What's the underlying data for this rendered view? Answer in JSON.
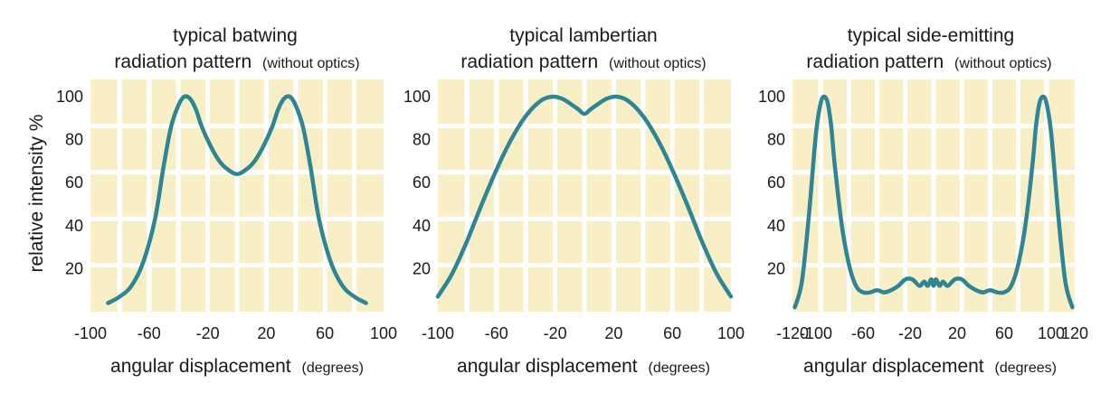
{
  "colors": {
    "plot_background": "#f8efc6",
    "grid": "#ffffff",
    "curve": "#2e8596",
    "text": "#1a1a1a"
  },
  "y_label": "relative intensity %",
  "chart_data": [
    {
      "type": "line",
      "title_line1": "typical batwing",
      "title_line2_main": "radiation pattern",
      "title_line2_note": "(without optics)",
      "xlabel_main": "angular displacement",
      "xlabel_unit": "(degrees)",
      "xlim": [
        -100,
        100
      ],
      "ylim": [
        0,
        108
      ],
      "xticks": [
        -100,
        -60,
        -20,
        20,
        60,
        100
      ],
      "yticks": [
        20,
        40,
        60,
        80,
        100
      ],
      "grid": true,
      "series": [
        {
          "x": [
            -88,
            -80,
            -72,
            -64,
            -56,
            -50,
            -45,
            -40,
            -36,
            -32,
            -28,
            -24,
            -18,
            -12,
            -6,
            0,
            6,
            12,
            18,
            24,
            28,
            32,
            36,
            40,
            45,
            50,
            56,
            64,
            72,
            80,
            88
          ],
          "y": [
            4,
            7,
            12,
            23,
            43,
            68,
            86,
            96,
            100,
            99,
            94,
            86,
            77,
            70,
            66,
            64,
            66,
            70,
            77,
            86,
            94,
            99,
            100,
            96,
            86,
            68,
            43,
            23,
            12,
            7,
            4
          ]
        }
      ]
    },
    {
      "type": "line",
      "title_line1": "typical lambertian",
      "title_line2_main": "radiation pattern",
      "title_line2_note": "(without optics)",
      "xlabel_main": "angular displacement",
      "xlabel_unit": "(degrees)",
      "xlim": [
        -100,
        100
      ],
      "ylim": [
        0,
        108
      ],
      "xticks": [
        -100,
        -60,
        -20,
        20,
        60,
        100
      ],
      "yticks": [
        20,
        40,
        60,
        80,
        100
      ],
      "grid": true,
      "series": [
        {
          "x": [
            -100,
            -90,
            -80,
            -70,
            -60,
            -50,
            -40,
            -30,
            -22,
            -15,
            -8,
            -4,
            0,
            4,
            8,
            15,
            22,
            30,
            40,
            50,
            60,
            70,
            80,
            90,
            100
          ],
          "y": [
            7,
            18,
            33,
            50,
            66,
            80,
            91,
            98,
            100,
            99,
            96,
            94,
            92,
            94,
            96,
            99,
            100,
            98,
            91,
            80,
            66,
            50,
            33,
            18,
            7
          ]
        }
      ]
    },
    {
      "type": "line",
      "title_line1": "typical side-emitting",
      "title_line2_main": "radiation pattern",
      "title_line2_note": "(without optics)",
      "xlabel_main": "angular displacement",
      "xlabel_unit": "(degrees)",
      "xlim": [
        -120,
        120
      ],
      "ylim": [
        0,
        108
      ],
      "xticks": [
        -120,
        -100,
        -60,
        -20,
        20,
        60,
        100,
        120
      ],
      "xtick_labels": [
        "-120",
        "-100",
        "-60",
        "-20",
        "20",
        "60",
        "100",
        "120"
      ],
      "yticks": [
        20,
        40,
        60,
        80,
        100
      ],
      "grid": true,
      "series": [
        {
          "x": [
            -118,
            -112,
            -106,
            -100,
            -96,
            -93,
            -90,
            -87,
            -84,
            -78,
            -72,
            -66,
            -60,
            -54,
            -48,
            -42,
            -36,
            -30,
            -24,
            -18,
            -12,
            -8,
            -5,
            -2,
            0,
            2,
            5,
            8,
            12,
            18,
            24,
            30,
            36,
            42,
            48,
            54,
            60,
            66,
            72,
            78,
            84,
            87,
            90,
            93,
            96,
            100,
            106,
            112,
            118
          ],
          "y": [
            2,
            14,
            45,
            83,
            97,
            100,
            97,
            86,
            68,
            40,
            22,
            12,
            9,
            9,
            10,
            9,
            10,
            12,
            15,
            15,
            12,
            14,
            12,
            15,
            12,
            15,
            12,
            14,
            12,
            15,
            15,
            12,
            10,
            9,
            10,
            9,
            9,
            12,
            22,
            40,
            68,
            86,
            97,
            100,
            97,
            83,
            45,
            14,
            2
          ]
        }
      ]
    }
  ]
}
